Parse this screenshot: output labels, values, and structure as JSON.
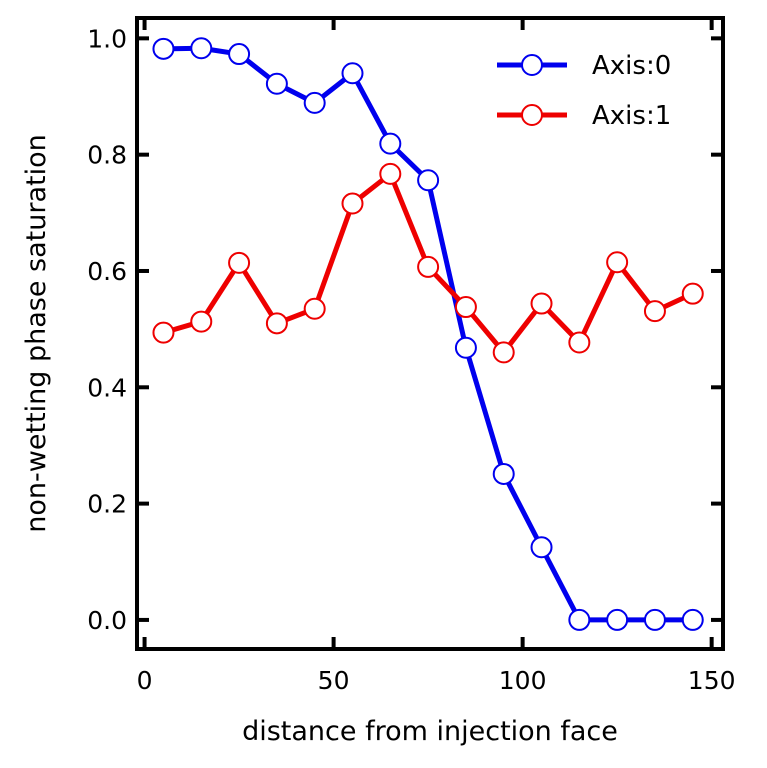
{
  "chart_data": {
    "type": "line",
    "title": "",
    "xlabel": "distance from injection face",
    "ylabel": "non-wetting phase saturation",
    "xlim": [
      -2,
      153
    ],
    "ylim": [
      -0.05,
      1.035
    ],
    "xticks": [
      0,
      50,
      100,
      150
    ],
    "yticks": [
      0.0,
      0.2,
      0.4,
      0.6,
      0.8,
      1.0
    ],
    "xtick_labels": [
      "0",
      "50",
      "100",
      "150"
    ],
    "ytick_labels": [
      "0.0",
      "0.2",
      "0.4",
      "0.6",
      "0.8",
      "1.0"
    ],
    "grid": false,
    "legend_position": "top-right",
    "x": [
      5,
      15,
      25,
      35,
      45,
      55,
      65,
      75,
      85,
      95,
      105,
      115,
      125,
      135,
      145
    ],
    "series": [
      {
        "name": "Axis:0",
        "color": "#0000ee",
        "values": [
          0.982,
          0.983,
          0.973,
          0.922,
          0.889,
          0.94,
          0.819,
          0.756,
          0.468,
          0.251,
          0.125,
          0.0,
          0.0,
          0.0,
          0.0
        ]
      },
      {
        "name": "Axis:1",
        "color": "#ee0000",
        "values": [
          0.494,
          0.513,
          0.614,
          0.51,
          0.535,
          0.716,
          0.767,
          0.607,
          0.538,
          0.46,
          0.544,
          0.477,
          0.615,
          0.531,
          0.561
        ]
      }
    ]
  }
}
